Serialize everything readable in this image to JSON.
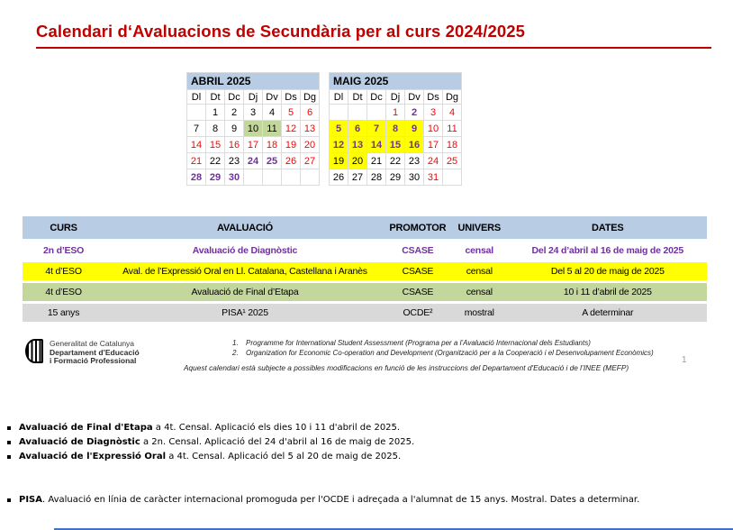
{
  "slide": {
    "title": "Calendari d‘Avaluacions de Secundària per al curs 2024/2025",
    "page_number": "1",
    "note": "Aquest calendari està subjecte a possibles modificacions en funció de les instruccions del Departament d'Educació i de l’INEE (MEFP)",
    "footnotes": [
      {
        "num": "1.",
        "text": "Programme for International Student Assessment (Programa per a l’Avaluació Internacional dels Estudiants)"
      },
      {
        "num": "2.",
        "text": "Organization for Economic Co-operation and Development (Organització per a la Cooperació i el Desenvolupament Econòmics)"
      }
    ],
    "logo": {
      "line1": "Generalitat de Catalunya",
      "line2": "Departament d’Educació",
      "line3": "i Formació Professional"
    }
  },
  "calendars": [
    {
      "title": "ABRIL 2025",
      "day_headers": [
        "Dl",
        "Dt",
        "Dc",
        "Dj",
        "Dv",
        "Ds",
        "Dg"
      ],
      "weeks": [
        [
          {
            "d": ""
          },
          {
            "d": "1"
          },
          {
            "d": "2"
          },
          {
            "d": "3"
          },
          {
            "d": "4"
          },
          {
            "d": "5",
            "cls": "red"
          },
          {
            "d": "6",
            "cls": "red"
          }
        ],
        [
          {
            "d": "7"
          },
          {
            "d": "8"
          },
          {
            "d": "9"
          },
          {
            "d": "10",
            "cls": "bg-green"
          },
          {
            "d": "11",
            "cls": "bg-green"
          },
          {
            "d": "12",
            "cls": "red"
          },
          {
            "d": "13",
            "cls": "red"
          }
        ],
        [
          {
            "d": "14",
            "cls": "red"
          },
          {
            "d": "15",
            "cls": "red"
          },
          {
            "d": "16",
            "cls": "red"
          },
          {
            "d": "17",
            "cls": "red"
          },
          {
            "d": "18",
            "cls": "red"
          },
          {
            "d": "19",
            "cls": "red"
          },
          {
            "d": "20",
            "cls": "red"
          }
        ],
        [
          {
            "d": "21",
            "cls": "red"
          },
          {
            "d": "22"
          },
          {
            "d": "23"
          },
          {
            "d": "24",
            "cls": "purple"
          },
          {
            "d": "25",
            "cls": "purple"
          },
          {
            "d": "26",
            "cls": "red"
          },
          {
            "d": "27",
            "cls": "red"
          }
        ],
        [
          {
            "d": "28",
            "cls": "purple"
          },
          {
            "d": "29",
            "cls": "purple"
          },
          {
            "d": "30",
            "cls": "purple"
          },
          {
            "d": ""
          },
          {
            "d": ""
          },
          {
            "d": ""
          },
          {
            "d": ""
          }
        ]
      ]
    },
    {
      "title": "MAIG 2025",
      "day_headers": [
        "Dl",
        "Dt",
        "Dc",
        "Dj",
        "Dv",
        "Ds",
        "Dg"
      ],
      "weeks": [
        [
          {
            "d": ""
          },
          {
            "d": ""
          },
          {
            "d": ""
          },
          {
            "d": "1",
            "cls": "red"
          },
          {
            "d": "2",
            "cls": "purple"
          },
          {
            "d": "3",
            "cls": "red"
          },
          {
            "d": "4",
            "cls": "red"
          }
        ],
        [
          {
            "d": "5",
            "cls": "bg-yellow purple"
          },
          {
            "d": "6",
            "cls": "bg-yellow purple"
          },
          {
            "d": "7",
            "cls": "bg-yellow purple"
          },
          {
            "d": "8",
            "cls": "bg-yellow purple"
          },
          {
            "d": "9",
            "cls": "bg-yellow purple"
          },
          {
            "d": "10",
            "cls": "red"
          },
          {
            "d": "11",
            "cls": "red"
          }
        ],
        [
          {
            "d": "12",
            "cls": "bg-yellow purple"
          },
          {
            "d": "13",
            "cls": "bg-yellow purple"
          },
          {
            "d": "14",
            "cls": "bg-yellow purple"
          },
          {
            "d": "15",
            "cls": "bg-yellow purple"
          },
          {
            "d": "16",
            "cls": "bg-yellow purple"
          },
          {
            "d": "17",
            "cls": "red"
          },
          {
            "d": "18",
            "cls": "red"
          }
        ],
        [
          {
            "d": "19",
            "cls": "bg-yellow"
          },
          {
            "d": "20",
            "cls": "bg-yellow"
          },
          {
            "d": "21"
          },
          {
            "d": "22"
          },
          {
            "d": "23"
          },
          {
            "d": "24",
            "cls": "red"
          },
          {
            "d": "25",
            "cls": "red"
          }
        ],
        [
          {
            "d": "26"
          },
          {
            "d": "27"
          },
          {
            "d": "28"
          },
          {
            "d": "29"
          },
          {
            "d": "30"
          },
          {
            "d": "31",
            "cls": "red"
          },
          {
            "d": ""
          }
        ]
      ]
    }
  ],
  "table": {
    "headers": [
      "CURS",
      "AVALUACIÓ",
      "PROMOTOR",
      "UNIVERS",
      "DATES"
    ],
    "col_widths": [
      "12%",
      "41%",
      "9.5%",
      "8.5%",
      "29%"
    ],
    "rows": [
      {
        "bg": "#FFFFFF",
        "color": "#7030A0",
        "bold": true,
        "cells": [
          "2n d’ESO",
          "Avaluació de Diagnòstic",
          "CSASE",
          "censal",
          "Del 24 d’abril al 16 de maig de 2025"
        ]
      },
      {
        "bg": "#FFFF00",
        "color": "#000000",
        "bold": false,
        "cells": [
          "4t d’ESO",
          "Aval. de l’Expressió Oral en Ll. Catalana,  Castellana i  Aranès",
          "CSASE",
          "censal",
          "Del 5 al 20 de maig de 2025"
        ]
      },
      {
        "bg": "#C3D69B",
        "color": "#000000",
        "bold": false,
        "cells": [
          "4t d’ESO",
          "Avaluació de Final d’Etapa",
          "CSASE",
          "censal",
          "10 i 11 d’abril de 2025"
        ]
      },
      {
        "bg": "#D9D9D9",
        "color": "#000000",
        "bold": false,
        "cells": [
          "15 anys",
          "PISA¹ 2025",
          "OCDE²",
          "mostral",
          "A determinar"
        ]
      }
    ]
  },
  "bullets": [
    {
      "bold": "Avaluació de Final d'Etapa",
      "rest": " a 4t. Censal. Aplicació els dies 10 i 11 d'abril de 2025."
    },
    {
      "bold": "Avaluació de Diagnòstic",
      "rest": " a 2n. Censal. Aplicació del 24 d'abril al 16 de maig de 2025."
    },
    {
      "bold": "Avaluació de l'Expressió Oral",
      "rest": " a 4t. Censal. Aplicació del 5 al 20 de maig de 2025."
    },
    {
      "bold": "PISA",
      "rest": ". Avaluació en línia de caràcter internacional promoguda per l'OCDE i adreçada a l'alumnat de 15 anys. Mostral. Dates a determinar.",
      "gap": true
    }
  ],
  "colors": {
    "accent_red": "#C00000",
    "header_blue": "#B8CCE4",
    "highlight_yellow": "#FFFF00",
    "highlight_green": "#C3D69B",
    "gray_row": "#D9D9D9",
    "purple_text": "#7030A0",
    "red_date": "#FF0000",
    "bottom_rule_blue": "#4472C4"
  }
}
